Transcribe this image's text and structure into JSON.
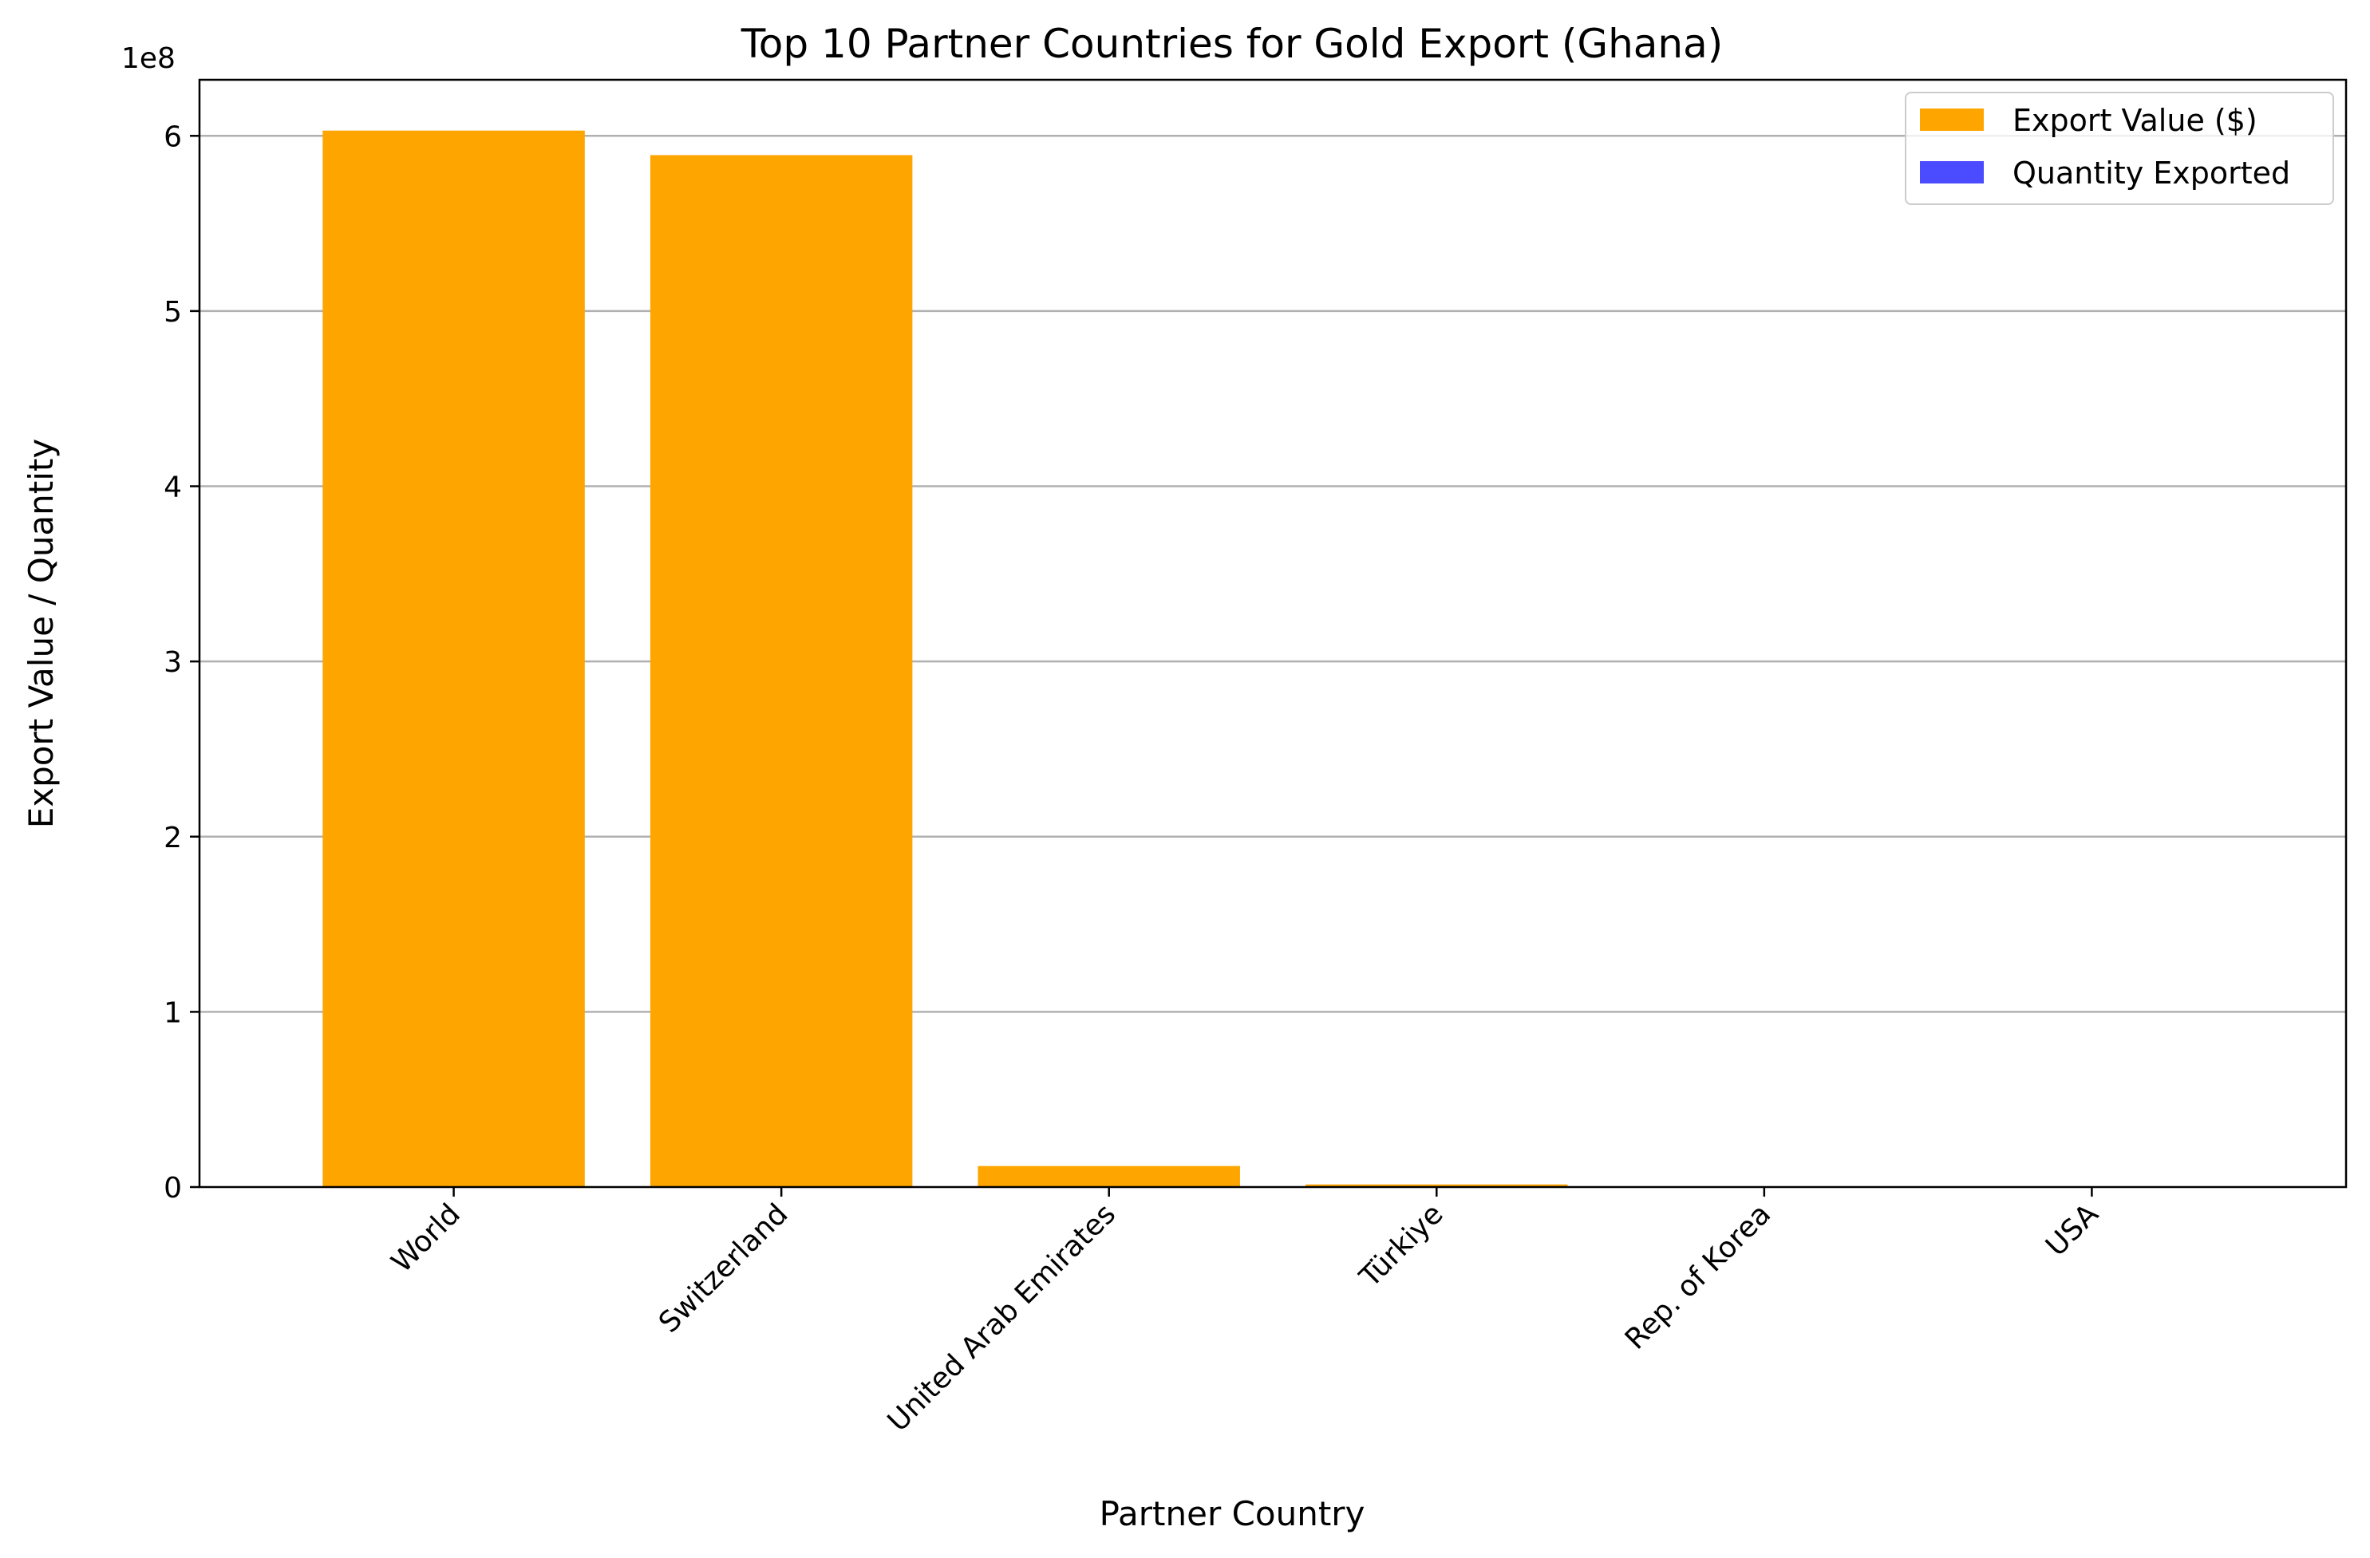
{
  "chart_data": {
    "type": "bar",
    "title": "Top 10 Partner Countries for Gold Export (Ghana)",
    "xlabel": "Partner Country",
    "ylabel": "Export Value / Quantity",
    "offset_text": "1e8",
    "categories": [
      "World",
      "Switzerland",
      "United Arab Emirates",
      "Türkiye",
      "Rep. of Korea",
      "USA"
    ],
    "series": [
      {
        "name": "Export Value ($)",
        "color": "#FFA500",
        "values": [
          603000000,
          589000000,
          12000000,
          1500000,
          100000,
          50000
        ]
      },
      {
        "name": "Quantity Exported",
        "color": "#4B4BFF",
        "values": [
          0,
          0,
          0,
          0,
          0,
          0
        ]
      }
    ],
    "ylim": [
      0,
      632000000
    ],
    "yticks": [
      0,
      100000000,
      200000000,
      300000000,
      400000000,
      500000000,
      600000000
    ],
    "ytick_labels": [
      "0",
      "1",
      "2",
      "3",
      "4",
      "5",
      "6"
    ],
    "grid": "y",
    "legend_position": "top-right"
  }
}
